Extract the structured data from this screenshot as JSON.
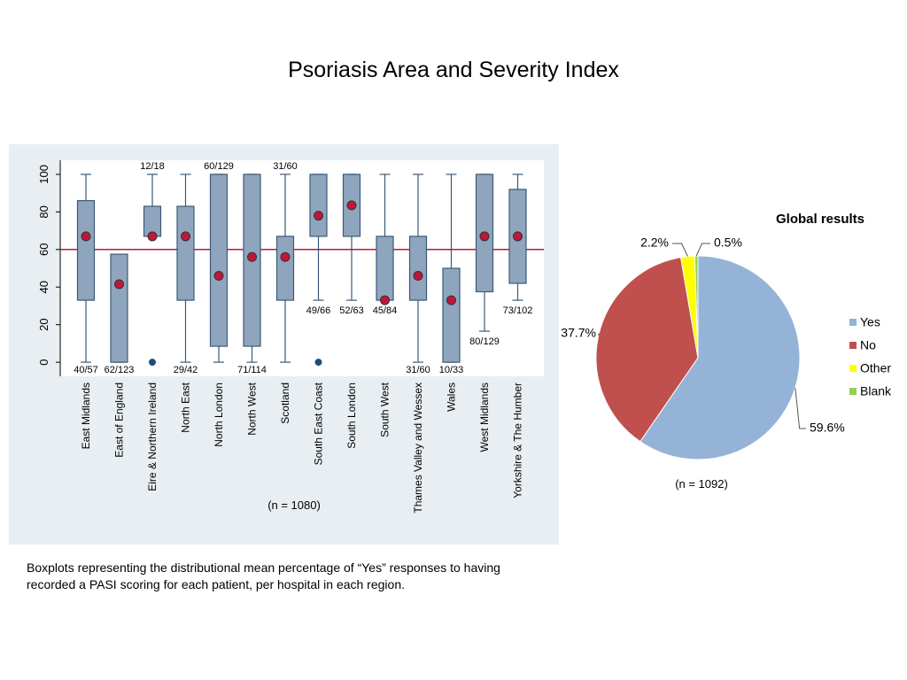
{
  "title": "Psoriasis Area and Severity Index",
  "caption": "Boxplots representing the distributional mean percentage of “Yes” responses to having recorded a PASI scoring for each patient, per hospital in each region.",
  "chart_data": [
    {
      "type": "box",
      "categories": [
        "East Midlands",
        "East of England",
        "Eire & Northern Ireland",
        "North East",
        "North London",
        "North West",
        "Scotland",
        "South East Coast",
        "South London",
        "South West",
        "Thames Valley and Wessex",
        "Wales",
        "West Midlands",
        "Yorkshire & The Humber"
      ],
      "whisker_low": [
        0,
        0,
        67,
        0,
        0,
        0,
        0,
        33,
        33,
        33,
        0,
        0,
        16.5,
        33
      ],
      "q1": [
        33,
        0,
        67,
        33,
        8.5,
        8.5,
        33,
        67,
        67,
        33,
        33,
        0,
        37.5,
        42
      ],
      "q3": [
        86,
        57.5,
        83,
        83,
        100,
        100,
        67,
        100,
        100,
        67,
        67,
        50,
        100,
        92
      ],
      "whisker_high": [
        100,
        57.5,
        100,
        100,
        100,
        100,
        100,
        100,
        100,
        100,
        100,
        100,
        100,
        100
      ],
      "mean": [
        67,
        41.5,
        67,
        67,
        46,
        56,
        56,
        78,
        83.5,
        33,
        46,
        33,
        67,
        67
      ],
      "outliers": [
        [],
        [],
        [
          0
        ],
        [],
        [],
        [],
        [],
        [
          0
        ],
        [],
        [],
        [],
        [],
        [],
        []
      ],
      "counts": [
        "40/57",
        "62/123",
        "12/18",
        "29/42",
        "60/129",
        "71/114",
        "31/60",
        "49/66",
        "52/63",
        "45/84",
        "31/60",
        "10/33",
        "80/129",
        "73/102"
      ],
      "reference_line": 60,
      "ylim": [
        -7.5,
        107.5
      ],
      "yticks": [
        0,
        20,
        40,
        60,
        80,
        100
      ],
      "box_color": "#8ea5bd",
      "mean_color": "#c0163a",
      "ref_color": "#c0163a",
      "note": "(n = 1080)"
    },
    {
      "type": "pie",
      "title": "Global results",
      "categories": [
        "Yes",
        "No",
        "Other",
        "Blank"
      ],
      "values": [
        59.6,
        37.7,
        2.2,
        0.5
      ],
      "value_labels": [
        "59.6%",
        "37.7%",
        "2.2%",
        "0.5%"
      ],
      "colors": [
        "#95b3d7",
        "#c0504d",
        "#ffff00",
        "#92d050"
      ],
      "legend": "right",
      "note": "(n = 1092)"
    }
  ]
}
